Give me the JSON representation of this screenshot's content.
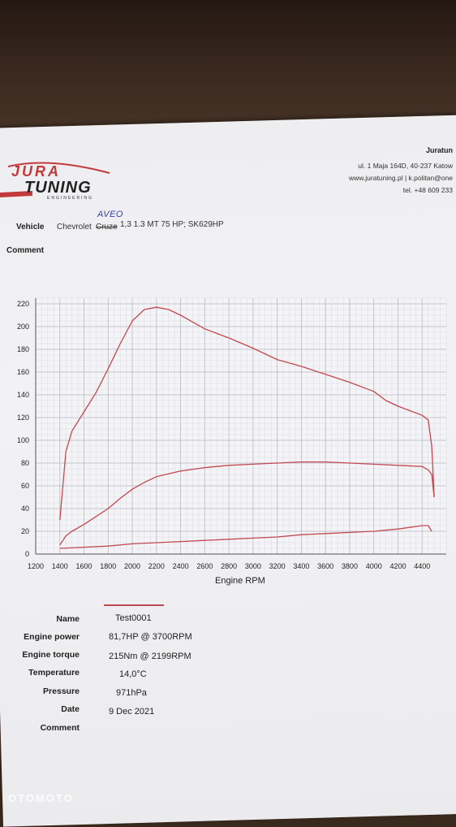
{
  "header": {
    "logo_brand": "JURA TUNING",
    "logo_sub": "ENGINEERING",
    "company": "Juratun",
    "address_line1": "ul. 1 Maja 164D, 40-237 Katow",
    "address_line2": "www.juratuning.pl | k.politan@one",
    "phone": "tel. +48 609 233"
  },
  "vehicle": {
    "label": "Vehicle",
    "prefix": "Chevrolet",
    "struck": "Cruze",
    "rest": "1,3 1.3 MT 75 HP; SK629HP",
    "handwritten": "AVEO"
  },
  "comment_label": "Comment",
  "chart_data": {
    "type": "line",
    "title": "",
    "xlabel": "Engine RPM",
    "ylabel": "",
    "xlim": [
      1200,
      4600
    ],
    "ylim": [
      0,
      225
    ],
    "x_ticks": [
      1200,
      1400,
      1600,
      1800,
      2000,
      2200,
      2400,
      2600,
      2800,
      3000,
      3200,
      3400,
      3600,
      3800,
      4000,
      4200,
      4400
    ],
    "y_ticks": [
      0,
      20,
      40,
      60,
      80,
      100,
      120,
      140,
      160,
      180,
      200,
      220
    ],
    "grid": true,
    "line_color": "#c0494f",
    "series": [
      {
        "x": [
          1400,
          1450,
          1500,
          1600,
          1700,
          1800,
          1900,
          2000,
          2100,
          2200,
          2300,
          2400,
          2500,
          2600,
          2800,
          3000,
          3200,
          3400,
          3600,
          3800,
          4000,
          4100,
          4200,
          4300,
          4400,
          4450,
          4480,
          4500
        ],
        "values": [
          30,
          90,
          108,
          125,
          142,
          163,
          185,
          205,
          215,
          217,
          215,
          210,
          204,
          198,
          190,
          181,
          171,
          165,
          158,
          151,
          143,
          135,
          130,
          126,
          122,
          118,
          95,
          50
        ]
      },
      {
        "x": [
          1400,
          1450,
          1500,
          1600,
          1700,
          1800,
          1900,
          2000,
          2100,
          2200,
          2400,
          2600,
          2800,
          3000,
          3200,
          3400,
          3600,
          3800,
          4000,
          4200,
          4400,
          4450,
          4480,
          4500
        ],
        "values": [
          8,
          16,
          20,
          26,
          33,
          40,
          49,
          57,
          63,
          68,
          73,
          76,
          78,
          79,
          80,
          81,
          81,
          80,
          79,
          78,
          77,
          74,
          70,
          50
        ]
      },
      {
        "x": [
          1400,
          1600,
          1800,
          2000,
          2200,
          2400,
          2600,
          2800,
          3000,
          3200,
          3400,
          3600,
          3800,
          4000,
          4200,
          4400,
          4450,
          4480
        ],
        "values": [
          5,
          6,
          7,
          9,
          10,
          11,
          12,
          13,
          14,
          15,
          17,
          18,
          19,
          20,
          22,
          25,
          25,
          20
        ]
      }
    ]
  },
  "run": {
    "name_label": "Name",
    "name_value": "Test0001",
    "power_label": "Engine power",
    "power_value": "81,7HP @  3700RPM",
    "torque_label": "Engine torque",
    "torque_value": "215Nm @ 2199RPM",
    "temperature_label": "Temperature",
    "temperature_value": "14,0°C",
    "pressure_label": "Pressure",
    "pressure_value": "971hPa",
    "date_label": "Date",
    "date_value": "9 Dec 2021",
    "comment_label": "Comment"
  },
  "watermark": "OTOMOTO"
}
